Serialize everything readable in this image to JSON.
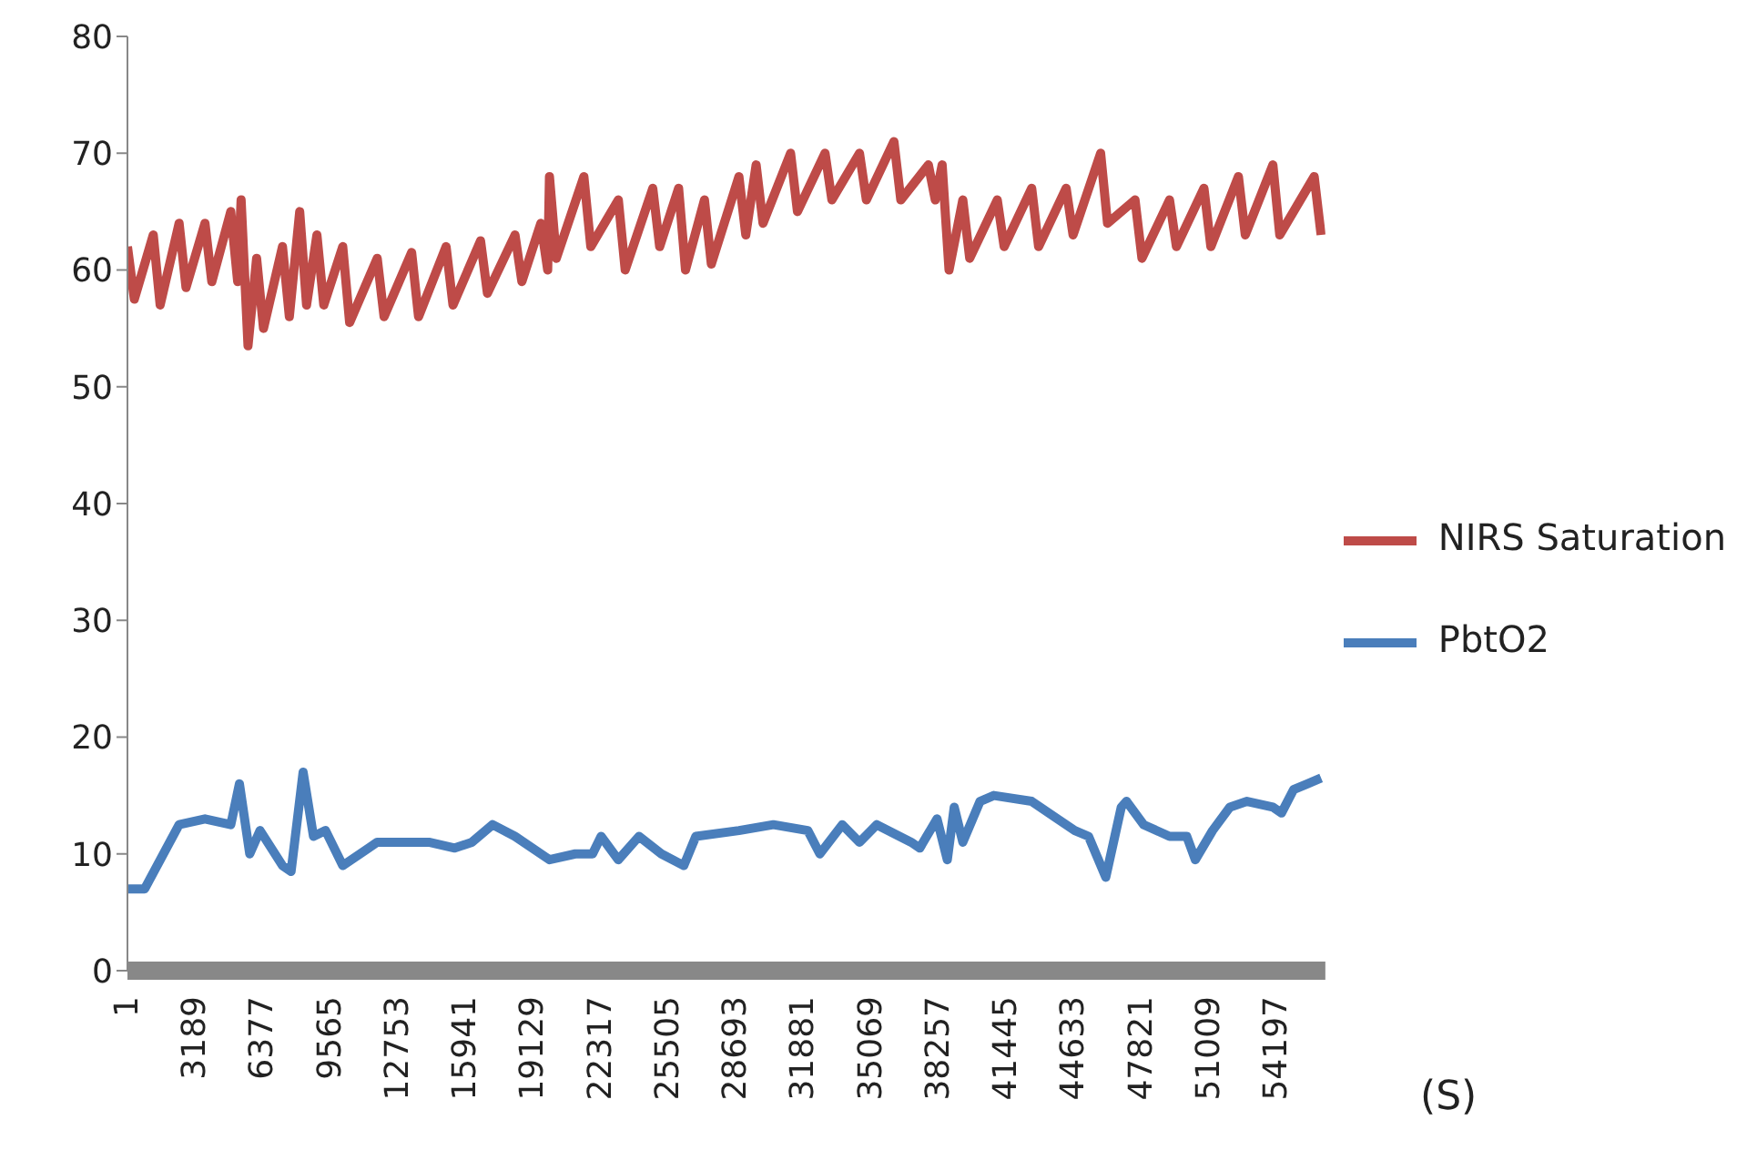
{
  "chart_data": {
    "type": "line",
    "xlabel": "(S)",
    "xlim": [
      1,
      56500
    ],
    "xticks": [
      1,
      3189,
      6377,
      9565,
      12753,
      15941,
      19129,
      22317,
      25505,
      28693,
      31881,
      35069,
      38257,
      41445,
      44633,
      47821,
      51009,
      54197
    ],
    "ylim": [
      0,
      80
    ],
    "yticks": [
      0,
      10,
      20,
      30,
      40,
      50,
      60,
      70,
      80
    ],
    "grid": false,
    "legend": "right",
    "marker": "none",
    "line_style": "solid",
    "series": [
      {
        "name": "PbtO2",
        "color": "#4a7ebb",
        "x": [
          1,
          813,
          2438,
          3657,
          4875,
          5282,
          5769,
          6256,
          7313,
          7719,
          8287,
          8775,
          9344,
          10156,
          11375,
          11781,
          14218,
          15437,
          16249,
          17224,
          18280,
          19905,
          21123,
          21936,
          22342,
          23154,
          24129,
          25185,
          26241,
          26810,
          28841,
          30466,
          32091,
          32659,
          33715,
          34528,
          35340,
          36965,
          37371,
          38184,
          38671,
          38996,
          39402,
          40214,
          40864,
          42651,
          43870,
          44682,
          45331,
          46144,
          46875,
          47120,
          47932,
          49150,
          49963,
          50369,
          51181,
          51994,
          52806,
          54025,
          54431,
          55000,
          55650,
          56300
        ],
        "values": [
          7,
          7,
          12.5,
          13,
          12.5,
          16,
          10,
          12,
          9,
          8.5,
          17,
          11.5,
          12,
          9,
          10.5,
          11,
          11,
          10.5,
          11,
          12.5,
          11.5,
          9.5,
          10,
          10,
          11.5,
          9.5,
          11.5,
          10,
          9,
          11.5,
          12,
          12.5,
          12,
          10,
          12.5,
          11,
          12.5,
          11,
          10.5,
          13,
          9.5,
          14,
          11,
          14.5,
          15,
          14.5,
          13,
          12,
          11.5,
          8,
          14,
          14.5,
          12.5,
          11.5,
          11.5,
          9.5,
          12,
          14,
          14.5,
          14,
          13.5,
          15.5,
          16,
          16.5
        ]
      },
      {
        "name": "NIRS Saturation",
        "color": "#be4b48",
        "x": [
          1,
          325,
          1219,
          1544,
          2438,
          2763,
          3657,
          3981,
          4875,
          5200,
          5362,
          5687,
          6093,
          6418,
          7313,
          7637,
          8125,
          8449,
          8937,
          9262,
          10156,
          10480,
          11781,
          12105,
          13405,
          13730,
          15030,
          15355,
          16655,
          16979,
          18280,
          18604,
          19498,
          19822,
          19905,
          20229,
          21529,
          21854,
          23154,
          23478,
          24778,
          25103,
          25997,
          26322,
          27216,
          27540,
          28841,
          29165,
          29653,
          29978,
          31278,
          31602,
          32903,
          33227,
          34528,
          34852,
          36152,
          36477,
          37777,
          38102,
          38427,
          38751,
          39402,
          39726,
          41026,
          41351,
          42651,
          42976,
          44276,
          44601,
          45901,
          46226,
          47525,
          47850,
          49150,
          49475,
          50775,
          51100,
          52400,
          52724,
          54025,
          54350,
          55974,
          56300
        ],
        "values": [
          62,
          57.5,
          63,
          57,
          64,
          58.5,
          64,
          59,
          65,
          59,
          66,
          53.5,
          61,
          55,
          62,
          56,
          65,
          57,
          63,
          57,
          62,
          55.5,
          61,
          56,
          61.5,
          56,
          62,
          57,
          62.5,
          58,
          63,
          59,
          64,
          60,
          68,
          61,
          68,
          62,
          66,
          60,
          67,
          62,
          67,
          60,
          66,
          60.5,
          68,
          63,
          69,
          64,
          70,
          65,
          70,
          66,
          70,
          66,
          71,
          66,
          69,
          66,
          69,
          60,
          66,
          61,
          66,
          62,
          67,
          62,
          67,
          63,
          70,
          64,
          66,
          61,
          66,
          62,
          67,
          62,
          68,
          63,
          69,
          63,
          68,
          63
        ]
      }
    ]
  }
}
